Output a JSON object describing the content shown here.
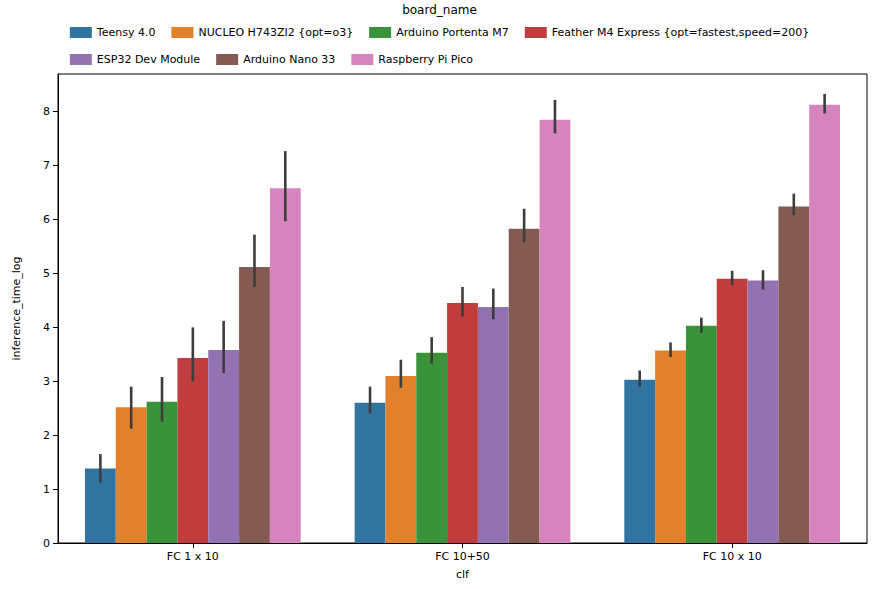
{
  "chart_data": {
    "type": "bar",
    "x_label": "clf",
    "y_label": "inference_time_log",
    "legend_title": "board_name",
    "legend": "top",
    "grid": false,
    "categories": [
      "FC 1 x 10",
      "FC 10+50",
      "FC 10 x 10"
    ],
    "ylim": [
      0,
      8.7
    ],
    "yticks": [
      0,
      1,
      2,
      3,
      4,
      5,
      6,
      7,
      8
    ],
    "series": [
      {
        "name": "Teensy 4.0",
        "color": "#3274a1",
        "values": [
          1.38,
          2.6,
          3.03
        ],
        "error_low": [
          1.12,
          2.4,
          2.9
        ],
        "error_high": [
          1.65,
          2.9,
          3.2
        ]
      },
      {
        "name": "NUCLEO H743ZI2 {opt=o3}",
        "color": "#e1812c",
        "values": [
          2.52,
          3.1,
          3.57
        ],
        "error_low": [
          2.12,
          2.88,
          3.45
        ],
        "error_high": [
          2.9,
          3.4,
          3.72
        ]
      },
      {
        "name": "Arduino Portenta M7",
        "color": "#3a923a",
        "values": [
          2.62,
          3.53,
          4.03
        ],
        "error_low": [
          2.25,
          3.33,
          3.9
        ],
        "error_high": [
          3.08,
          3.82,
          4.18
        ]
      },
      {
        "name": "Feather M4 Express {opt=fastest,speed=200}",
        "color": "#c03d3e",
        "values": [
          3.43,
          4.45,
          4.9
        ],
        "error_low": [
          3.0,
          4.2,
          4.78
        ],
        "error_high": [
          4.0,
          4.75,
          5.05
        ]
      },
      {
        "name": "ESP32 Dev Module",
        "color": "#9372b2",
        "values": [
          3.58,
          4.38,
          4.87
        ],
        "error_low": [
          3.15,
          4.15,
          4.7
        ],
        "error_high": [
          4.12,
          4.72,
          5.06
        ]
      },
      {
        "name": "Arduino Nano 33",
        "color": "#845b53",
        "values": [
          5.12,
          5.83,
          6.24
        ],
        "error_low": [
          4.75,
          5.58,
          6.08
        ],
        "error_high": [
          5.72,
          6.2,
          6.48
        ]
      },
      {
        "name": "Raspberry Pi Pico",
        "color": "#d684bd",
        "values": [
          6.58,
          7.85,
          8.13
        ],
        "error_low": [
          5.97,
          7.6,
          7.97
        ],
        "error_high": [
          7.27,
          8.22,
          8.33
        ]
      }
    ]
  }
}
